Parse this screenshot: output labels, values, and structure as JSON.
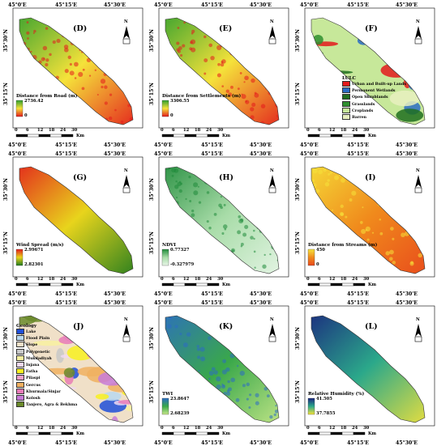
{
  "coords": {
    "lon": [
      "45°0'E",
      "45°15'E",
      "45°30'E"
    ],
    "lat": [
      "35°30'N",
      "35°15'N"
    ]
  },
  "scalebar": {
    "ticks": [
      "0",
      "6",
      "12",
      "18",
      "24",
      "30"
    ],
    "unit": "Km"
  },
  "north_arrow": {
    "letter": "N"
  },
  "panels": [
    {
      "id": "D",
      "letter": "(D)",
      "legend_title": "Distance from Road (m)",
      "high": "2736.42",
      "low": "0",
      "colors": {
        "high": "#2e9e2e",
        "low": "#e31a1c",
        "mid": "#f5e23a"
      }
    },
    {
      "id": "E",
      "letter": "(E)",
      "legend_title": "Distance from Settlements (m)",
      "high": "3306.55",
      "low": "0",
      "colors": {
        "high": "#2e9e2e",
        "low": "#e31a1c",
        "mid": "#f5e23a"
      }
    },
    {
      "id": "F",
      "letter": "(F)",
      "legend_title": "LULC",
      "classes": [
        {
          "name": "Urban and Built-up Lands",
          "color": "#e31a1c"
        },
        {
          "name": "Permanent Wetlands",
          "color": "#2b6cc4"
        },
        {
          "name": "Open Shrublands",
          "color": "#1f6e1f"
        },
        {
          "name": "Grasslands",
          "color": "#2f8f2f"
        },
        {
          "name": "Croplands",
          "color": "#c7e89a"
        },
        {
          "name": "Barren",
          "color": "#e8f0c0"
        }
      ]
    },
    {
      "id": "G",
      "letter": "(G)",
      "legend_title": "Wind Spread (m/s)",
      "high": "2.99671",
      "low": "2.82301",
      "colors": {
        "high": "#e31a1c",
        "low": "#1f7a1f",
        "mid": "#e8d41c"
      }
    },
    {
      "id": "H",
      "letter": "(H)",
      "legend_title": "NDVI",
      "high": "0.77327",
      "low": "-0.327979",
      "colors": {
        "high": "#1f8a3a",
        "low": "#e8f6e8",
        "mid": "#a8dca8"
      }
    },
    {
      "id": "I",
      "letter": "(I)",
      "legend_title": "Distance from Streams (m)",
      "high": "450",
      "low": "0",
      "colors": {
        "high": "#f5e23a",
        "low": "#e8481c",
        "mid": "#f08a1c"
      }
    },
    {
      "id": "J",
      "letter": "(J)",
      "legend_title": "Geology",
      "classes": [
        {
          "name": "Lake",
          "color": "#1f4ed8"
        },
        {
          "name": "Flood Plain",
          "color": "#b8d8f0"
        },
        {
          "name": "Slope",
          "color": "#f0e0c8"
        },
        {
          "name": "Polygenetic",
          "color": "#c8c8c8"
        },
        {
          "name": "Mukdadiyah",
          "color": "#f8f0a0"
        },
        {
          "name": "Injana",
          "color": "#f0d8f0"
        },
        {
          "name": "Fatha",
          "color": "#f8f020"
        },
        {
          "name": "Pilaspi",
          "color": "#f0a0c8"
        },
        {
          "name": "Gercus",
          "color": "#f0b060"
        },
        {
          "name": "Khurmala/Sinjar",
          "color": "#e87ab8"
        },
        {
          "name": "Kolosh",
          "color": "#c87ad8"
        },
        {
          "name": "Tanjero, Agra & Bekhma",
          "color": "#6a8a2a"
        }
      ]
    },
    {
      "id": "K",
      "letter": "(K)",
      "legend_title": "TWI",
      "high": "23.8647",
      "low": "2.68239",
      "colors": {
        "high": "#2b6cc4",
        "low": "#c8e88a",
        "mid": "#3aa84a"
      }
    },
    {
      "id": "L",
      "letter": "(L)",
      "legend_title": "Relative Humidity (%)",
      "high": "41.505",
      "low": "37.7855",
      "colors": {
        "high": "#1a237e",
        "low": "#f5e23a",
        "mid": "#2ba88a"
      }
    }
  ]
}
